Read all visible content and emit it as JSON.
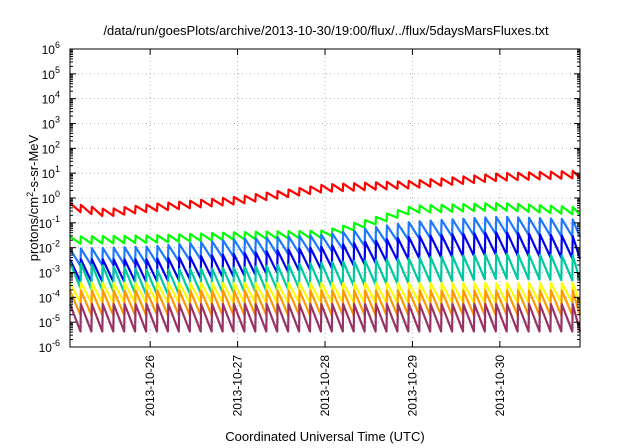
{
  "chart_data": {
    "type": "line",
    "title": "/data/run/goesPlots/archive/2013-10-30/19:00/flux/../flux/5daysMarsFluxes.txt",
    "xlabel": "Coordinated Universal Time (UTC)",
    "ylabel": "protons/cm2-s-sr-MeV",
    "ylabel_parts": {
      "before": "protons/cm",
      "sup": "2",
      "after": "-s-sr-MeV"
    },
    "x_tick_labels": [
      "2013-10-26",
      "2013-10-27",
      "2013-10-28",
      "2013-10-29",
      "2013-10-30"
    ],
    "y_scale": "log",
    "y_ticks": [
      {
        "base": "10",
        "exp": "-6"
      },
      {
        "base": "10",
        "exp": "-5"
      },
      {
        "base": "10",
        "exp": "-4"
      },
      {
        "base": "10",
        "exp": "-3"
      },
      {
        "base": "10",
        "exp": "-2"
      },
      {
        "base": "10",
        "exp": "-1"
      },
      {
        "base": "10",
        "exp": "0"
      },
      {
        "base": "10",
        "exp": "1"
      },
      {
        "base": "10",
        "exp": "2"
      },
      {
        "base": "10",
        "exp": "3"
      },
      {
        "base": "10",
        "exp": "4"
      },
      {
        "base": "10",
        "exp": "5"
      },
      {
        "base": "10",
        "exp": "6"
      }
    ],
    "xlim": [
      "2013-10-25 02:00",
      "2013-10-30 22:00"
    ],
    "ylim": [
      1e-06,
      1000000.0
    ],
    "grid": true,
    "series": [
      {
        "color": "#ff0000",
        "trend": {
          "x": [
            "2013-10-25 02:00",
            "2013-10-25 12:00",
            "2013-10-26 00:00",
            "2013-10-27 00:00",
            "2013-10-28 00:00",
            "2013-10-29 00:00",
            "2013-10-30 00:00",
            "2013-10-30 22:00"
          ],
          "y": [
            0.45,
            0.25,
            0.4,
            0.8,
            2.5,
            3.5,
            7,
            9
          ]
        },
        "sawtooth_amplitude_decades": 0.3
      },
      {
        "color": "#00ff00",
        "trend": {
          "x": [
            "2013-10-25 02:00",
            "2013-10-26 00:00",
            "2013-10-27 00:00",
            "2013-10-28 00:00",
            "2013-10-28 12:00",
            "2013-10-29 00:00",
            "2013-10-30 00:00",
            "2013-10-30 22:00"
          ],
          "y": [
            0.02,
            0.022,
            0.03,
            0.035,
            0.1,
            0.35,
            0.45,
            0.3
          ]
        },
        "sawtooth_amplitude_decades": 0.3
      },
      {
        "color": "#1e78ff",
        "trend": {
          "x": [
            "2013-10-25 02:00",
            "2013-10-26 00:00",
            "2013-10-27 00:00",
            "2013-10-28 00:00",
            "2013-10-29 00:00",
            "2013-10-30 00:00",
            "2013-10-30 22:00"
          ],
          "y": [
            0.004,
            0.005,
            0.01,
            0.015,
            0.05,
            0.08,
            0.06
          ]
        },
        "sawtooth_amplitude_decades": 0.7
      },
      {
        "color": "#0000ee",
        "trend": {
          "x": [
            "2013-10-25 02:00",
            "2013-10-26 00:00",
            "2013-10-27 00:00",
            "2013-10-28 00:00",
            "2013-10-29 00:00",
            "2013-10-30 00:00",
            "2013-10-30 22:00"
          ],
          "y": [
            0.0012,
            0.0012,
            0.002,
            0.004,
            0.01,
            0.015,
            0.01
          ]
        },
        "sawtooth_amplitude_decades": 0.9
      },
      {
        "color": "#00c8a0",
        "trend": {
          "x": [
            "2013-10-25 02:00",
            "2013-10-26 00:00",
            "2013-10-27 00:00",
            "2013-10-28 00:00",
            "2013-10-29 00:00",
            "2013-10-30 00:00",
            "2013-10-30 22:00"
          ],
          "y": [
            0.0008,
            0.0004,
            0.0005,
            0.0008,
            0.0012,
            0.0018,
            0.0015
          ]
        },
        "sawtooth_amplitude_decades": 1.0
      },
      {
        "color": "#ffff00",
        "trend": {
          "x": [
            "2013-10-25 02:00",
            "2013-10-30 22:00"
          ],
          "y": [
            0.00015,
            0.00015
          ]
        },
        "sawtooth_amplitude_decades": 0.8
      },
      {
        "color": "#ff9900",
        "trend": {
          "x": [
            "2013-10-25 02:00",
            "2013-10-30 22:00"
          ],
          "y": [
            6e-05,
            6e-05
          ]
        },
        "sawtooth_amplitude_decades": 1.0
      },
      {
        "color": "#993366",
        "trend": {
          "x": [
            "2013-10-25 02:00",
            "2013-10-30 22:00"
          ],
          "y": [
            1.5e-05,
            1.5e-05
          ]
        },
        "sawtooth_amplitude_decades": 1.1
      }
    ],
    "sawtooth_period_hours": 3
  }
}
